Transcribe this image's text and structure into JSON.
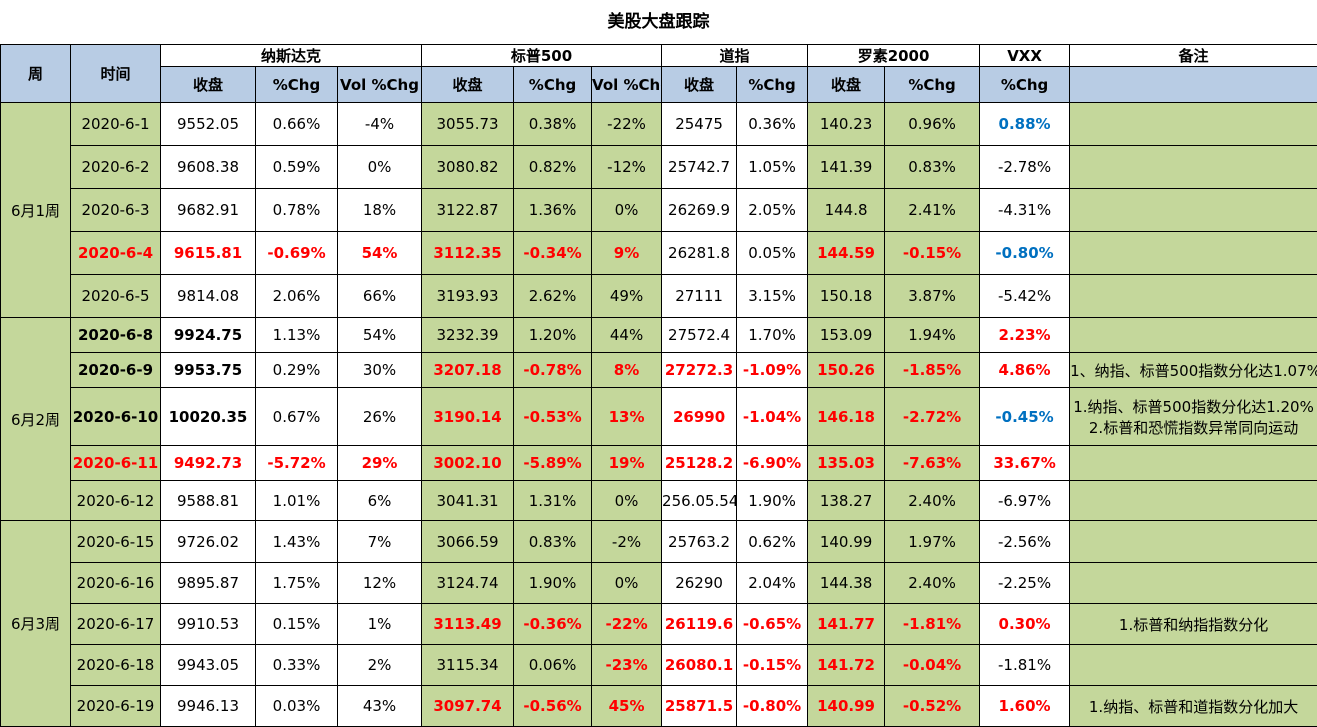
{
  "title": "美股大盘跟踪",
  "groups": {
    "week": "周",
    "time": "时间",
    "nasdaq": "纳斯达克",
    "sp500": "标普500",
    "dow": "道指",
    "russell": "罗素2000",
    "vxx": "VXX",
    "notes": "备注"
  },
  "subheaders": {
    "close": "收盘",
    "chg": "%Chg",
    "volchg": "Vol %Chg"
  },
  "weeks": [
    {
      "label": "6月1周",
      "rows": [
        {
          "date": "2020-6-1",
          "ndx": "9552.05",
          "ndx_chg": "0.66%",
          "ndx_vol": "-4%",
          "spx": "3055.73",
          "spx_chg": "0.38%",
          "spx_vol": "-22%",
          "dji": "25475",
          "dji_chg": "0.36%",
          "rut": "140.23",
          "rut_chg": "0.96%",
          "vxx": "0.88%",
          "note": ""
        },
        {
          "date": "2020-6-2",
          "ndx": "9608.38",
          "ndx_chg": "0.59%",
          "ndx_vol": "0%",
          "spx": "3080.82",
          "spx_chg": "0.82%",
          "spx_vol": "-12%",
          "dji": "25742.7",
          "dji_chg": "1.05%",
          "rut": "141.39",
          "rut_chg": "0.83%",
          "vxx": "-2.78%",
          "note": ""
        },
        {
          "date": "2020-6-3",
          "ndx": "9682.91",
          "ndx_chg": "0.78%",
          "ndx_vol": "18%",
          "spx": "3122.87",
          "spx_chg": "1.36%",
          "spx_vol": "0%",
          "dji": "26269.9",
          "dji_chg": "2.05%",
          "rut": "144.8",
          "rut_chg": "2.41%",
          "vxx": "-4.31%",
          "note": ""
        },
        {
          "date": "2020-6-4",
          "ndx": "9615.81",
          "ndx_chg": "-0.69%",
          "ndx_vol": "54%",
          "spx": "3112.35",
          "spx_chg": "-0.34%",
          "spx_vol": "9%",
          "dji": "26281.8",
          "dji_chg": "0.05%",
          "rut": "144.59",
          "rut_chg": "-0.15%",
          "vxx": "-0.80%",
          "note": ""
        },
        {
          "date": "2020-6-5",
          "ndx": "9814.08",
          "ndx_chg": "2.06%",
          "ndx_vol": "66%",
          "spx": "3193.93",
          "spx_chg": "2.62%",
          "spx_vol": "49%",
          "dji": "27111",
          "dji_chg": "3.15%",
          "rut": "150.18",
          "rut_chg": "3.87%",
          "vxx": "-5.42%",
          "note": ""
        }
      ]
    },
    {
      "label": "6月2周",
      "rows": [
        {
          "date": "2020-6-8",
          "ndx": "9924.75",
          "ndx_chg": "1.13%",
          "ndx_vol": "54%",
          "spx": "3232.39",
          "spx_chg": "1.20%",
          "spx_vol": "44%",
          "dji": "27572.4",
          "dji_chg": "1.70%",
          "rut": "153.09",
          "rut_chg": "1.94%",
          "vxx": "2.23%",
          "note": ""
        },
        {
          "date": "2020-6-9",
          "ndx": "9953.75",
          "ndx_chg": "0.29%",
          "ndx_vol": "30%",
          "spx": "3207.18",
          "spx_chg": "-0.78%",
          "spx_vol": "8%",
          "dji": "27272.3",
          "dji_chg": "-1.09%",
          "rut": "150.26",
          "rut_chg": "-1.85%",
          "vxx": "4.86%",
          "note": "1、纳指、标普500指数分化达1.07%"
        },
        {
          "date": "2020-6-10",
          "ndx": "10020.35",
          "ndx_chg": "0.67%",
          "ndx_vol": "26%",
          "spx": "3190.14",
          "spx_chg": "-0.53%",
          "spx_vol": "13%",
          "dji": "26990",
          "dji_chg": "-1.04%",
          "rut": "146.18",
          "rut_chg": "-2.72%",
          "vxx": "-0.45%",
          "note": "1.纳指、标普500指数分化达1.20%",
          "note2": "2.标普和恐慌指数异常同向运动"
        },
        {
          "date": "2020-6-11",
          "ndx": "9492.73",
          "ndx_chg": "-5.72%",
          "ndx_vol": "29%",
          "spx": "3002.10",
          "spx_chg": "-5.89%",
          "spx_vol": "19%",
          "dji": "25128.2",
          "dji_chg": "-6.90%",
          "rut": "135.03",
          "rut_chg": "-7.63%",
          "vxx": "33.67%",
          "note": ""
        },
        {
          "date": "2020-6-12",
          "ndx": "9588.81",
          "ndx_chg": "1.01%",
          "ndx_vol": "6%",
          "spx": "3041.31",
          "spx_chg": "1.31%",
          "spx_vol": "0%",
          "dji": "256.05.54",
          "dji_chg": "1.90%",
          "rut": "138.27",
          "rut_chg": "2.40%",
          "vxx": "-6.97%",
          "note": ""
        }
      ]
    },
    {
      "label": "6月3周",
      "rows": [
        {
          "date": "2020-6-15",
          "ndx": "9726.02",
          "ndx_chg": "1.43%",
          "ndx_vol": "7%",
          "spx": "3066.59",
          "spx_chg": "0.83%",
          "spx_vol": "-2%",
          "dji": "25763.2",
          "dji_chg": "0.62%",
          "rut": "140.99",
          "rut_chg": "1.97%",
          "vxx": "-2.56%",
          "note": ""
        },
        {
          "date": "2020-6-16",
          "ndx": "9895.87",
          "ndx_chg": "1.75%",
          "ndx_vol": "12%",
          "spx": "3124.74",
          "spx_chg": "1.90%",
          "spx_vol": "0%",
          "dji": "26290",
          "dji_chg": "2.04%",
          "rut": "144.38",
          "rut_chg": "2.40%",
          "vxx": "-2.25%",
          "note": ""
        },
        {
          "date": "2020-6-17",
          "ndx": "9910.53",
          "ndx_chg": "0.15%",
          "ndx_vol": "1%",
          "spx": "3113.49",
          "spx_chg": "-0.36%",
          "spx_vol": "-22%",
          "dji": "26119.6",
          "dji_chg": "-0.65%",
          "rut": "141.77",
          "rut_chg": "-1.81%",
          "vxx": "0.30%",
          "note": "1.标普和纳指指数分化"
        },
        {
          "date": "2020-6-18",
          "ndx": "9943.05",
          "ndx_chg": "0.33%",
          "ndx_vol": "2%",
          "spx": "3115.34",
          "spx_chg": "0.06%",
          "spx_vol": "-23%",
          "dji": "26080.1",
          "dji_chg": "-0.15%",
          "rut": "141.72",
          "rut_chg": "-0.04%",
          "vxx": "-1.81%",
          "note": ""
        },
        {
          "date": "2020-6-19",
          "ndx": "9946.13",
          "ndx_chg": "0.03%",
          "ndx_vol": "43%",
          "spx": "3097.74",
          "spx_chg": "-0.56%",
          "spx_vol": "45%",
          "dji": "25871.5",
          "dji_chg": "-0.80%",
          "rut": "140.99",
          "rut_chg": "-0.52%",
          "vxx": "1.60%",
          "note": "1.纳指、标普和道指数分化加大"
        }
      ]
    }
  ],
  "colors": {
    "header_blue": "#b8cce4",
    "cell_green": "#c4d79b",
    "negative_red": "#ff0000",
    "vxx_blue": "#0070c0"
  }
}
